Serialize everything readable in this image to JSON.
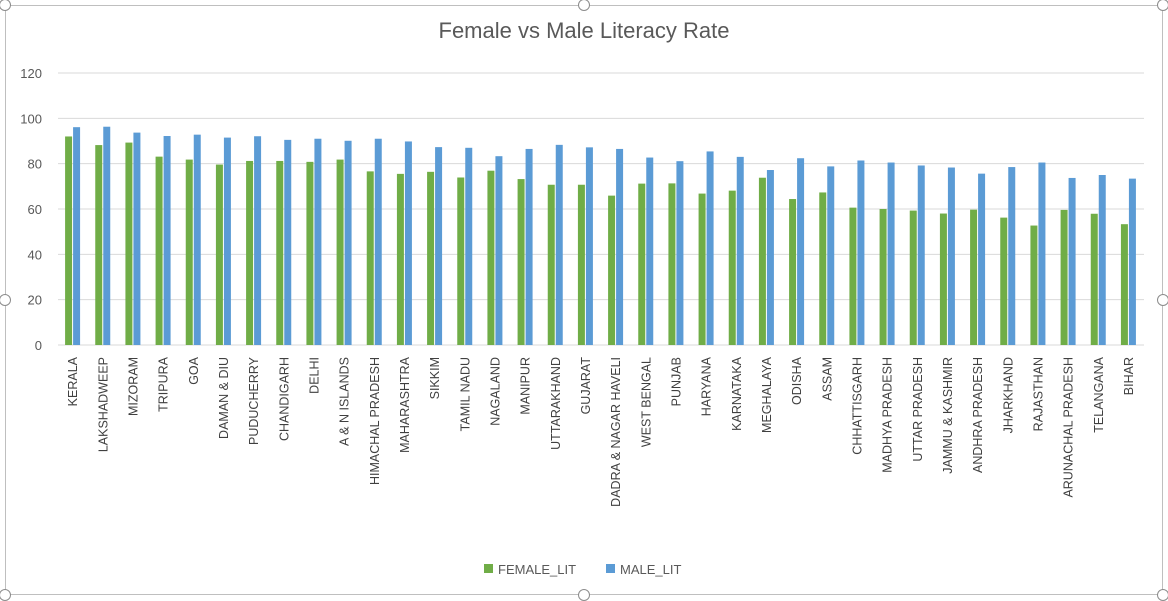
{
  "chart_data": {
    "type": "bar",
    "title": "Female vs Male Literacy Rate",
    "ylim": [
      0,
      120
    ],
    "yticks": [
      0,
      20,
      40,
      60,
      80,
      100,
      120
    ],
    "grid": true,
    "legend_position": "bottom",
    "categories": [
      "KERALA",
      "LAKSHADWEEP",
      "MIZORAM",
      "TRIPURA",
      "GOA",
      "DAMAN & DIU",
      "PUDUCHERRY",
      "CHANDIGARH",
      "DELHI",
      "A & N ISLANDS",
      "HIMACHAL PRADESH",
      "MAHARASHTRA",
      "SIKKIM",
      "TAMIL NADU",
      "NAGALAND",
      "MANIPUR",
      "UTTARAKHAND",
      "GUJARAT",
      "DADRA & NAGAR HAVELI",
      "WEST BENGAL",
      "PUNJAB",
      "HARYANA",
      "KARNATAKA",
      "MEGHALAYA",
      "ODISHA",
      "ASSAM",
      "CHHATTISGARH",
      "MADHYA PRADESH",
      "UTTAR PRADESH",
      "JAMMU & KASHMIR",
      "ANDHRA PRADESH",
      "JHARKHAND",
      "RAJASTHAN",
      "ARUNACHAL PRADESH",
      "TELANGANA",
      "BIHAR"
    ],
    "series": [
      {
        "name": "FEMALE_LIT",
        "color": "#70ad47",
        "values": [
          92,
          88.2,
          89.3,
          83.1,
          81.8,
          79.6,
          81.2,
          81.2,
          80.8,
          81.8,
          76.6,
          75.5,
          76.4,
          73.9,
          76.9,
          73.2,
          70.7,
          70.7,
          65.9,
          71.2,
          71.3,
          66.8,
          68.1,
          73.8,
          64.4,
          67.3,
          60.6,
          60,
          59.3,
          58,
          59.7,
          56.2,
          52.7,
          59.6,
          57.9,
          53.3
        ]
      },
      {
        "name": "MALE_LIT",
        "color": "#5b9bd5",
        "values": [
          96.1,
          96.3,
          93.7,
          92.2,
          92.8,
          91.5,
          92.1,
          90.5,
          91,
          90.1,
          91,
          89.8,
          87.3,
          87,
          83.3,
          86.5,
          88.3,
          87.2,
          86.5,
          82.7,
          81.1,
          85.4,
          83,
          77.2,
          82.4,
          78.8,
          81.4,
          80.5,
          79.2,
          78.3,
          75.6,
          78.5,
          80.5,
          73.7,
          75,
          73.4
        ]
      }
    ]
  }
}
